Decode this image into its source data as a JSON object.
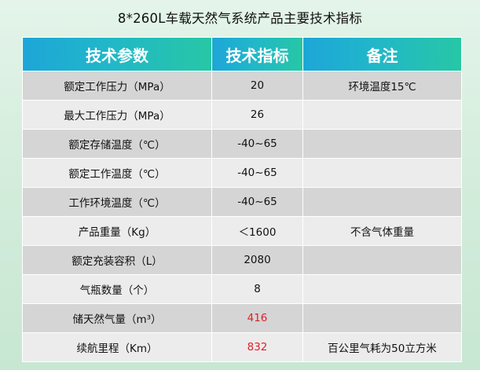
{
  "title": "8*260L车载天然气系统产品主要技术指标",
  "header": {
    "col1": "技术参数",
    "col2": "技术指标",
    "col3": "备注"
  },
  "rows": [
    {
      "param": "额定工作压力（MPa）",
      "value": "20",
      "note": "环境温度15℃"
    },
    {
      "param": "最大工作压力（MPa）",
      "value": "26",
      "note": ""
    },
    {
      "param": "额定存储温度（℃）",
      "value": "-40~65",
      "note": ""
    },
    {
      "param": "额定工作温度（℃）",
      "value": "-40~65",
      "note": ""
    },
    {
      "param": "工作环境温度（℃）",
      "value": "-40~65",
      "note": ""
    },
    {
      "param": "产品重量（Kg）",
      "value": "＜1600",
      "note": "不含气体重量"
    },
    {
      "param": "额定充装容积（L）",
      "value": "2080",
      "note": ""
    },
    {
      "param": "气瓶数量（个）",
      "value": "8",
      "note": ""
    },
    {
      "param": "储天然气量（m³）",
      "value": "416",
      "note": ""
    },
    {
      "param": "续航里程（Km）",
      "value": "832",
      "note": "百公里气耗为50立方米"
    }
  ],
  "colors": {
    "header_start": "#1da6d8",
    "header_end": "#27c7a5",
    "row_dark": "#d5d5d5",
    "row_light": "#ececec",
    "highlight_value": "#e0202a"
  }
}
